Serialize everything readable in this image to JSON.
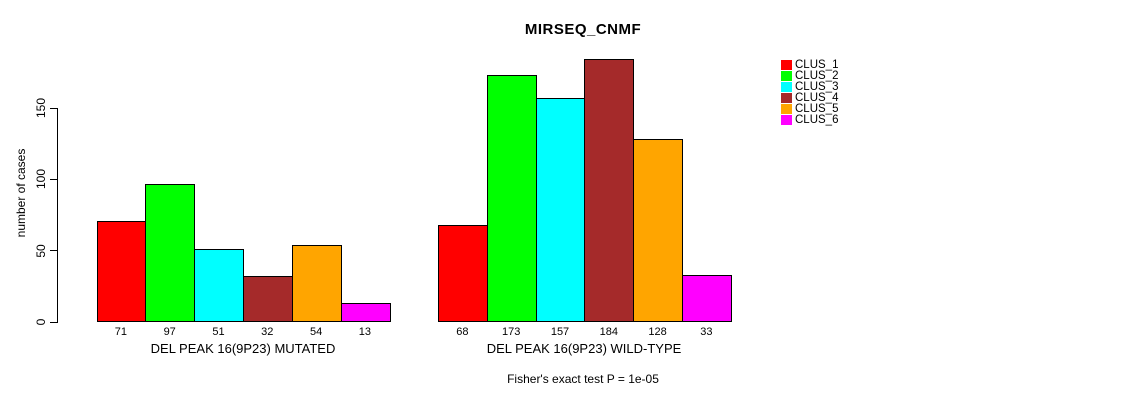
{
  "chart_data": {
    "type": "bar",
    "title": "MIRSEQ_CNMF",
    "ylabel": "number of cases",
    "xlabel": "",
    "annotation": "Fisher's exact test P = 1e-05",
    "ylim": [
      0,
      150
    ],
    "yticks": [
      0,
      50,
      100,
      150
    ],
    "grid": false,
    "legend_position": "right",
    "series": [
      {
        "name": "CLUS_1",
        "color": "#ff0000"
      },
      {
        "name": "CLUS_2",
        "color": "#00ff00"
      },
      {
        "name": "CLUS_3",
        "color": "#00ffff"
      },
      {
        "name": "CLUS_4",
        "color": "#a52a2a"
      },
      {
        "name": "CLUS_5",
        "color": "#ffa500"
      },
      {
        "name": "CLUS_6",
        "color": "#ff00ff"
      }
    ],
    "groups": [
      {
        "label": "DEL PEAK 16(9P23) MUTATED",
        "values": [
          71,
          97,
          51,
          32,
          54,
          13
        ]
      },
      {
        "label": "DEL PEAK 16(9P23) WILD-TYPE",
        "values": [
          68,
          173,
          157,
          184,
          128,
          33
        ]
      }
    ]
  }
}
